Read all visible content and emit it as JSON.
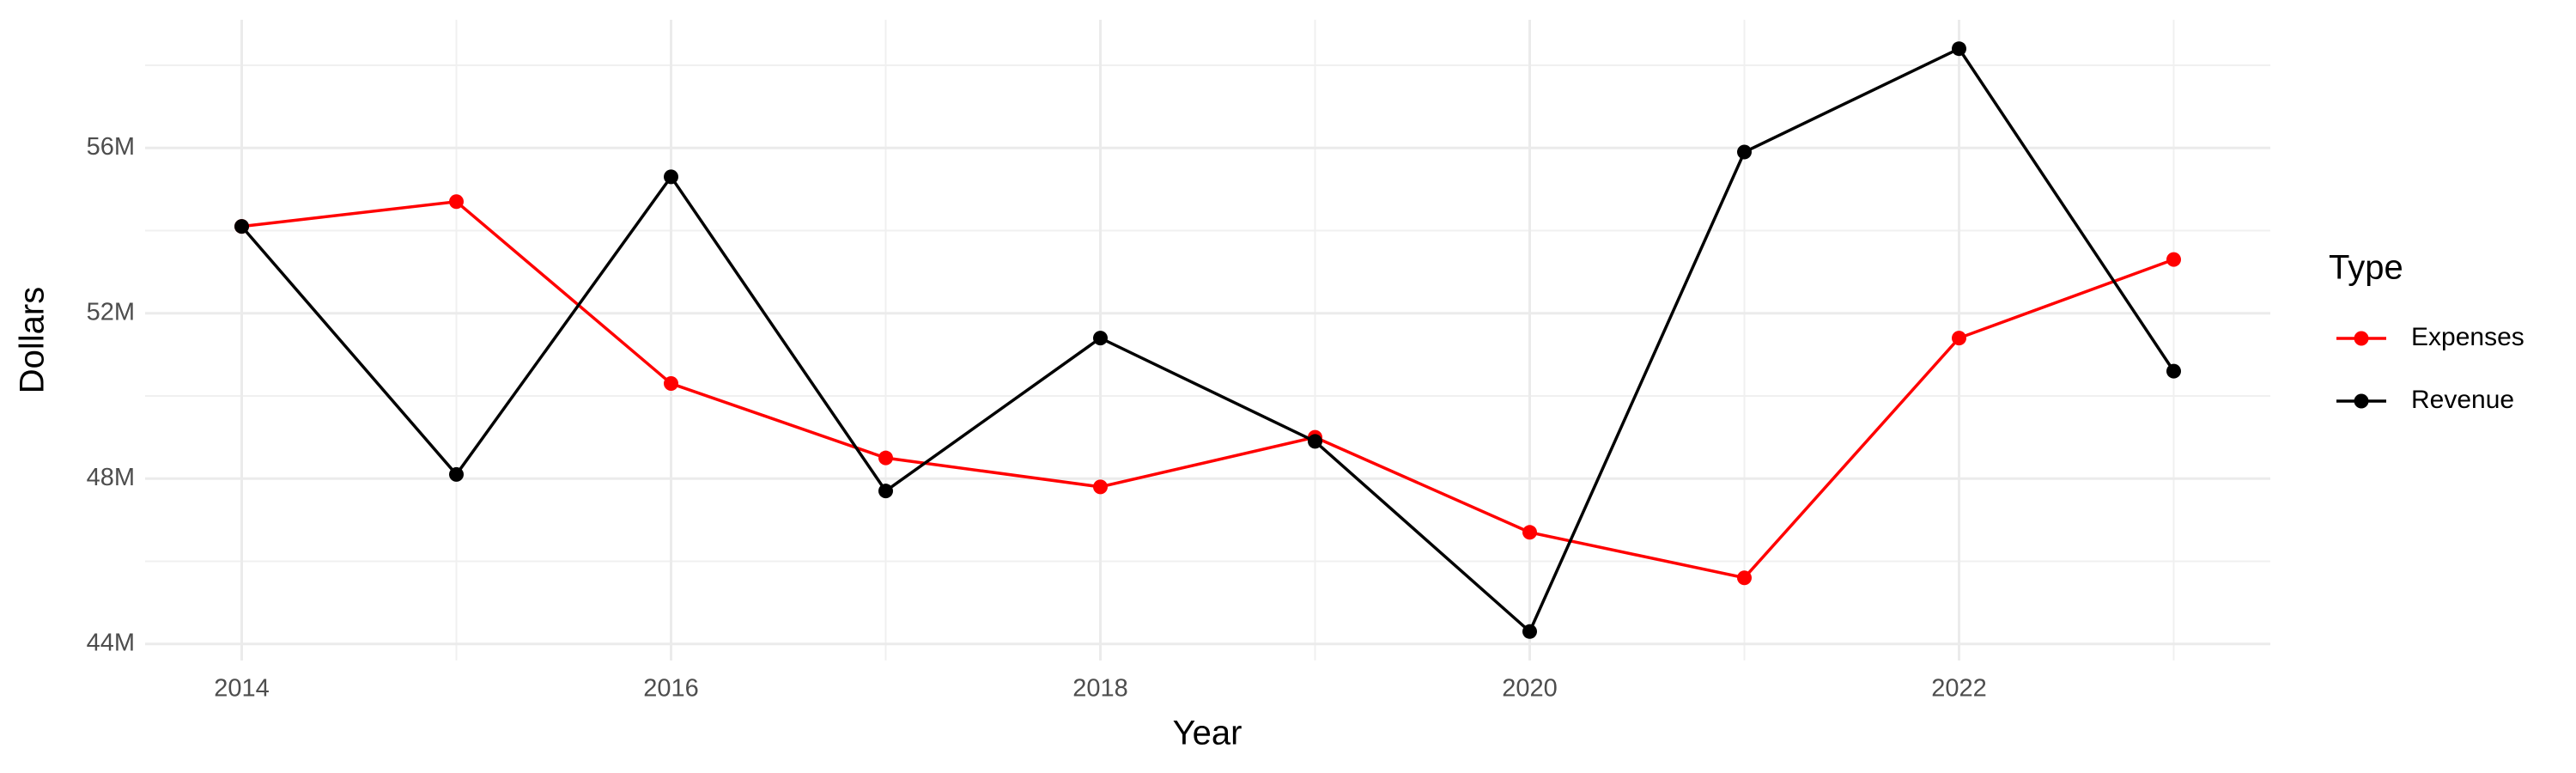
{
  "chart_data": {
    "type": "line",
    "x_label": "Year",
    "y_label": "Dollars",
    "legend_title": "Type",
    "legend_position": "right",
    "x": [
      2014,
      2015,
      2016,
      2017,
      2018,
      2019,
      2020,
      2021,
      2022,
      2023
    ],
    "series": [
      {
        "name": "Expenses",
        "color": "#ff0000",
        "values": [
          54100000,
          54700000,
          50300000,
          48500000,
          47800000,
          49000000,
          46700000,
          45600000,
          51400000,
          53300000
        ]
      },
      {
        "name": "Revenue",
        "color": "#000000",
        "values": [
          54100000,
          48100000,
          55300000,
          47700000,
          51400000,
          48900000,
          44300000,
          55900000,
          58400000,
          50600000
        ]
      }
    ],
    "xlim": [
      2013.55,
      2023.45
    ],
    "xticks": [
      2014,
      2016,
      2018,
      2020,
      2022
    ],
    "ylim": [
      43600000,
      59100000
    ],
    "yticks": [
      {
        "value": 44000000,
        "label": "44M"
      },
      {
        "value": 48000000,
        "label": "48M"
      },
      {
        "value": 52000000,
        "label": "52M"
      },
      {
        "value": 56000000,
        "label": "56M"
      }
    ],
    "grid": true
  }
}
